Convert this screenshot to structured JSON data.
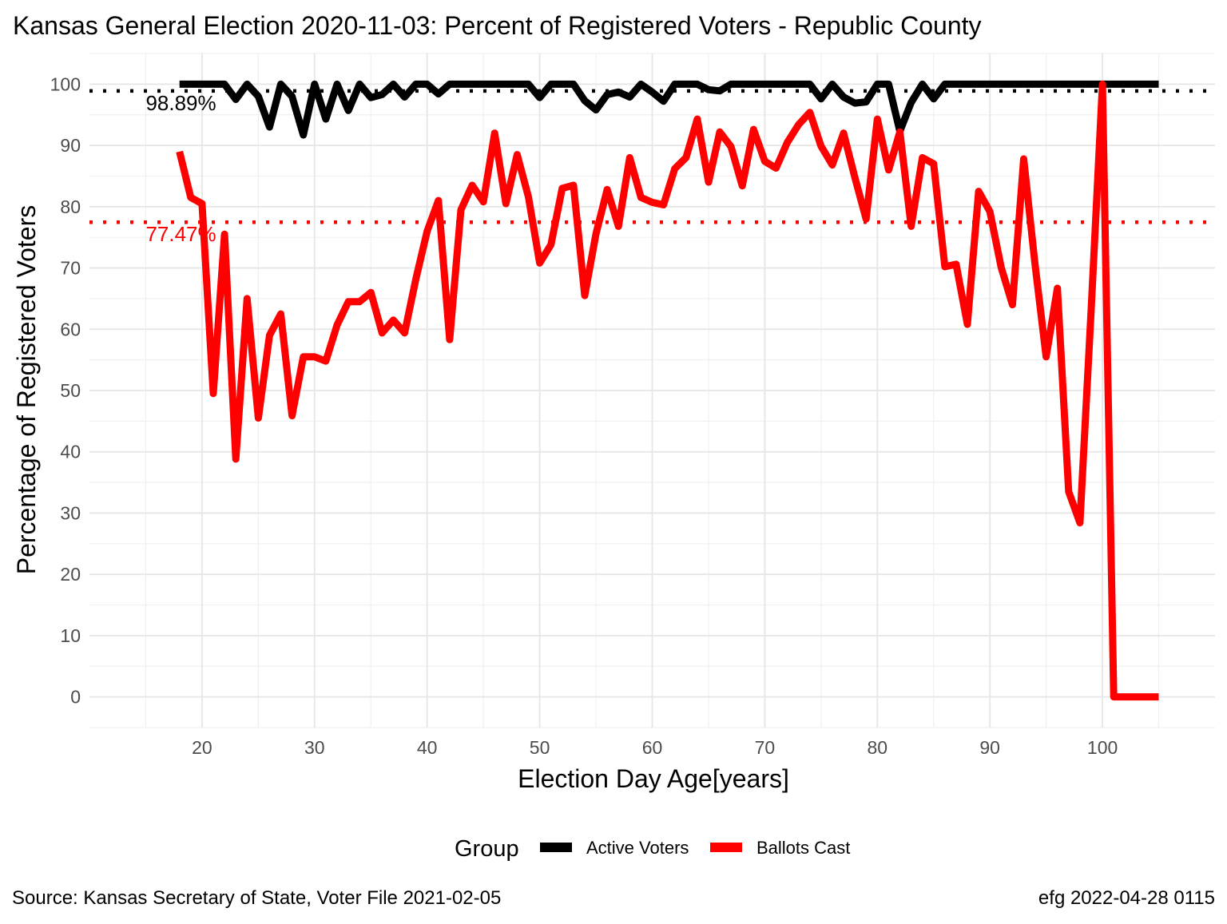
{
  "chart_data": {
    "type": "line",
    "title": "Kansas General Election 2020-11-03:  Percent of Registered Voters - Republic County",
    "xlabel": "Election Day Age[years]",
    "ylabel": "Percentage of Registered Voters",
    "xlim": [
      10,
      110
    ],
    "ylim": [
      -5,
      105
    ],
    "x_ticks": [
      20,
      30,
      40,
      50,
      60,
      70,
      80,
      90,
      100
    ],
    "y_ticks": [
      0,
      10,
      20,
      30,
      40,
      50,
      60,
      70,
      80,
      90,
      100
    ],
    "grid": true,
    "legend": {
      "title": "Group",
      "position": "bottom"
    },
    "series": [
      {
        "name": "Active Voters",
        "color": "#000000",
        "x_start": 18,
        "values": [
          100,
          100,
          100,
          100,
          100,
          97.5,
          100,
          98,
          93,
          100,
          98,
          91.7,
          100,
          94.3,
          100,
          95.7,
          100,
          97.8,
          98.3,
          100,
          97.9,
          100,
          100,
          98.4,
          100,
          100,
          100,
          100,
          100,
          100,
          100,
          100,
          97.8,
          100,
          100,
          100,
          97.3,
          95.8,
          98.3,
          98.7,
          97.9,
          100,
          98.7,
          97.2,
          100,
          100,
          100,
          99.1,
          98.9,
          100,
          100,
          100,
          100,
          100,
          100,
          100,
          100,
          97.6,
          100,
          97.9,
          96.9,
          97.1,
          100,
          100,
          92.3,
          97,
          100,
          97.6,
          100,
          100,
          100,
          100,
          100,
          100,
          100,
          100,
          100,
          100,
          100,
          100,
          100,
          100,
          100,
          100,
          100,
          100,
          100,
          100
        ]
      },
      {
        "name": "Ballots Cast",
        "color": "#ff0000",
        "x_start": 18,
        "values": [
          89,
          81.5,
          80.5,
          49.5,
          75.5,
          38.8,
          65,
          45.5,
          59,
          62.5,
          45.9,
          55.5,
          55.5,
          54.8,
          60.7,
          64.5,
          64.5,
          66,
          59.4,
          61.5,
          59.4,
          68.2,
          76,
          81,
          58.3,
          79.5,
          83.5,
          80.8,
          92,
          80.5,
          88.5,
          81.6,
          70.8,
          73.8,
          83,
          83.5,
          65.5,
          75.6,
          82.8,
          76.8,
          88,
          81.5,
          80.7,
          80.3,
          86.2,
          88,
          94.3,
          84,
          92.2,
          89.8,
          83.4,
          92.6,
          87.4,
          86.3,
          90.5,
          93.4,
          95.4,
          89.9,
          86.8,
          92,
          84.8,
          78,
          94.3,
          86,
          92.2,
          76.8,
          88,
          87,
          70.2,
          70.6,
          60.8,
          82.5,
          79.2,
          70.1,
          64,
          87.8,
          70.7,
          55.5,
          66.7,
          33.5,
          28.4,
          63.3,
          100,
          0,
          0,
          0,
          0,
          0
        ]
      }
    ],
    "reference_lines": [
      {
        "series": "Active Voters",
        "value": 98.89,
        "label": "98.89%"
      },
      {
        "series": "Ballots Cast",
        "value": 77.47,
        "label": "77.47%"
      }
    ]
  },
  "footer": {
    "source": "Source:  Kansas Secretary of State, Voter File  2021-02-05",
    "credit": "efg 2022-04-28 0115"
  }
}
